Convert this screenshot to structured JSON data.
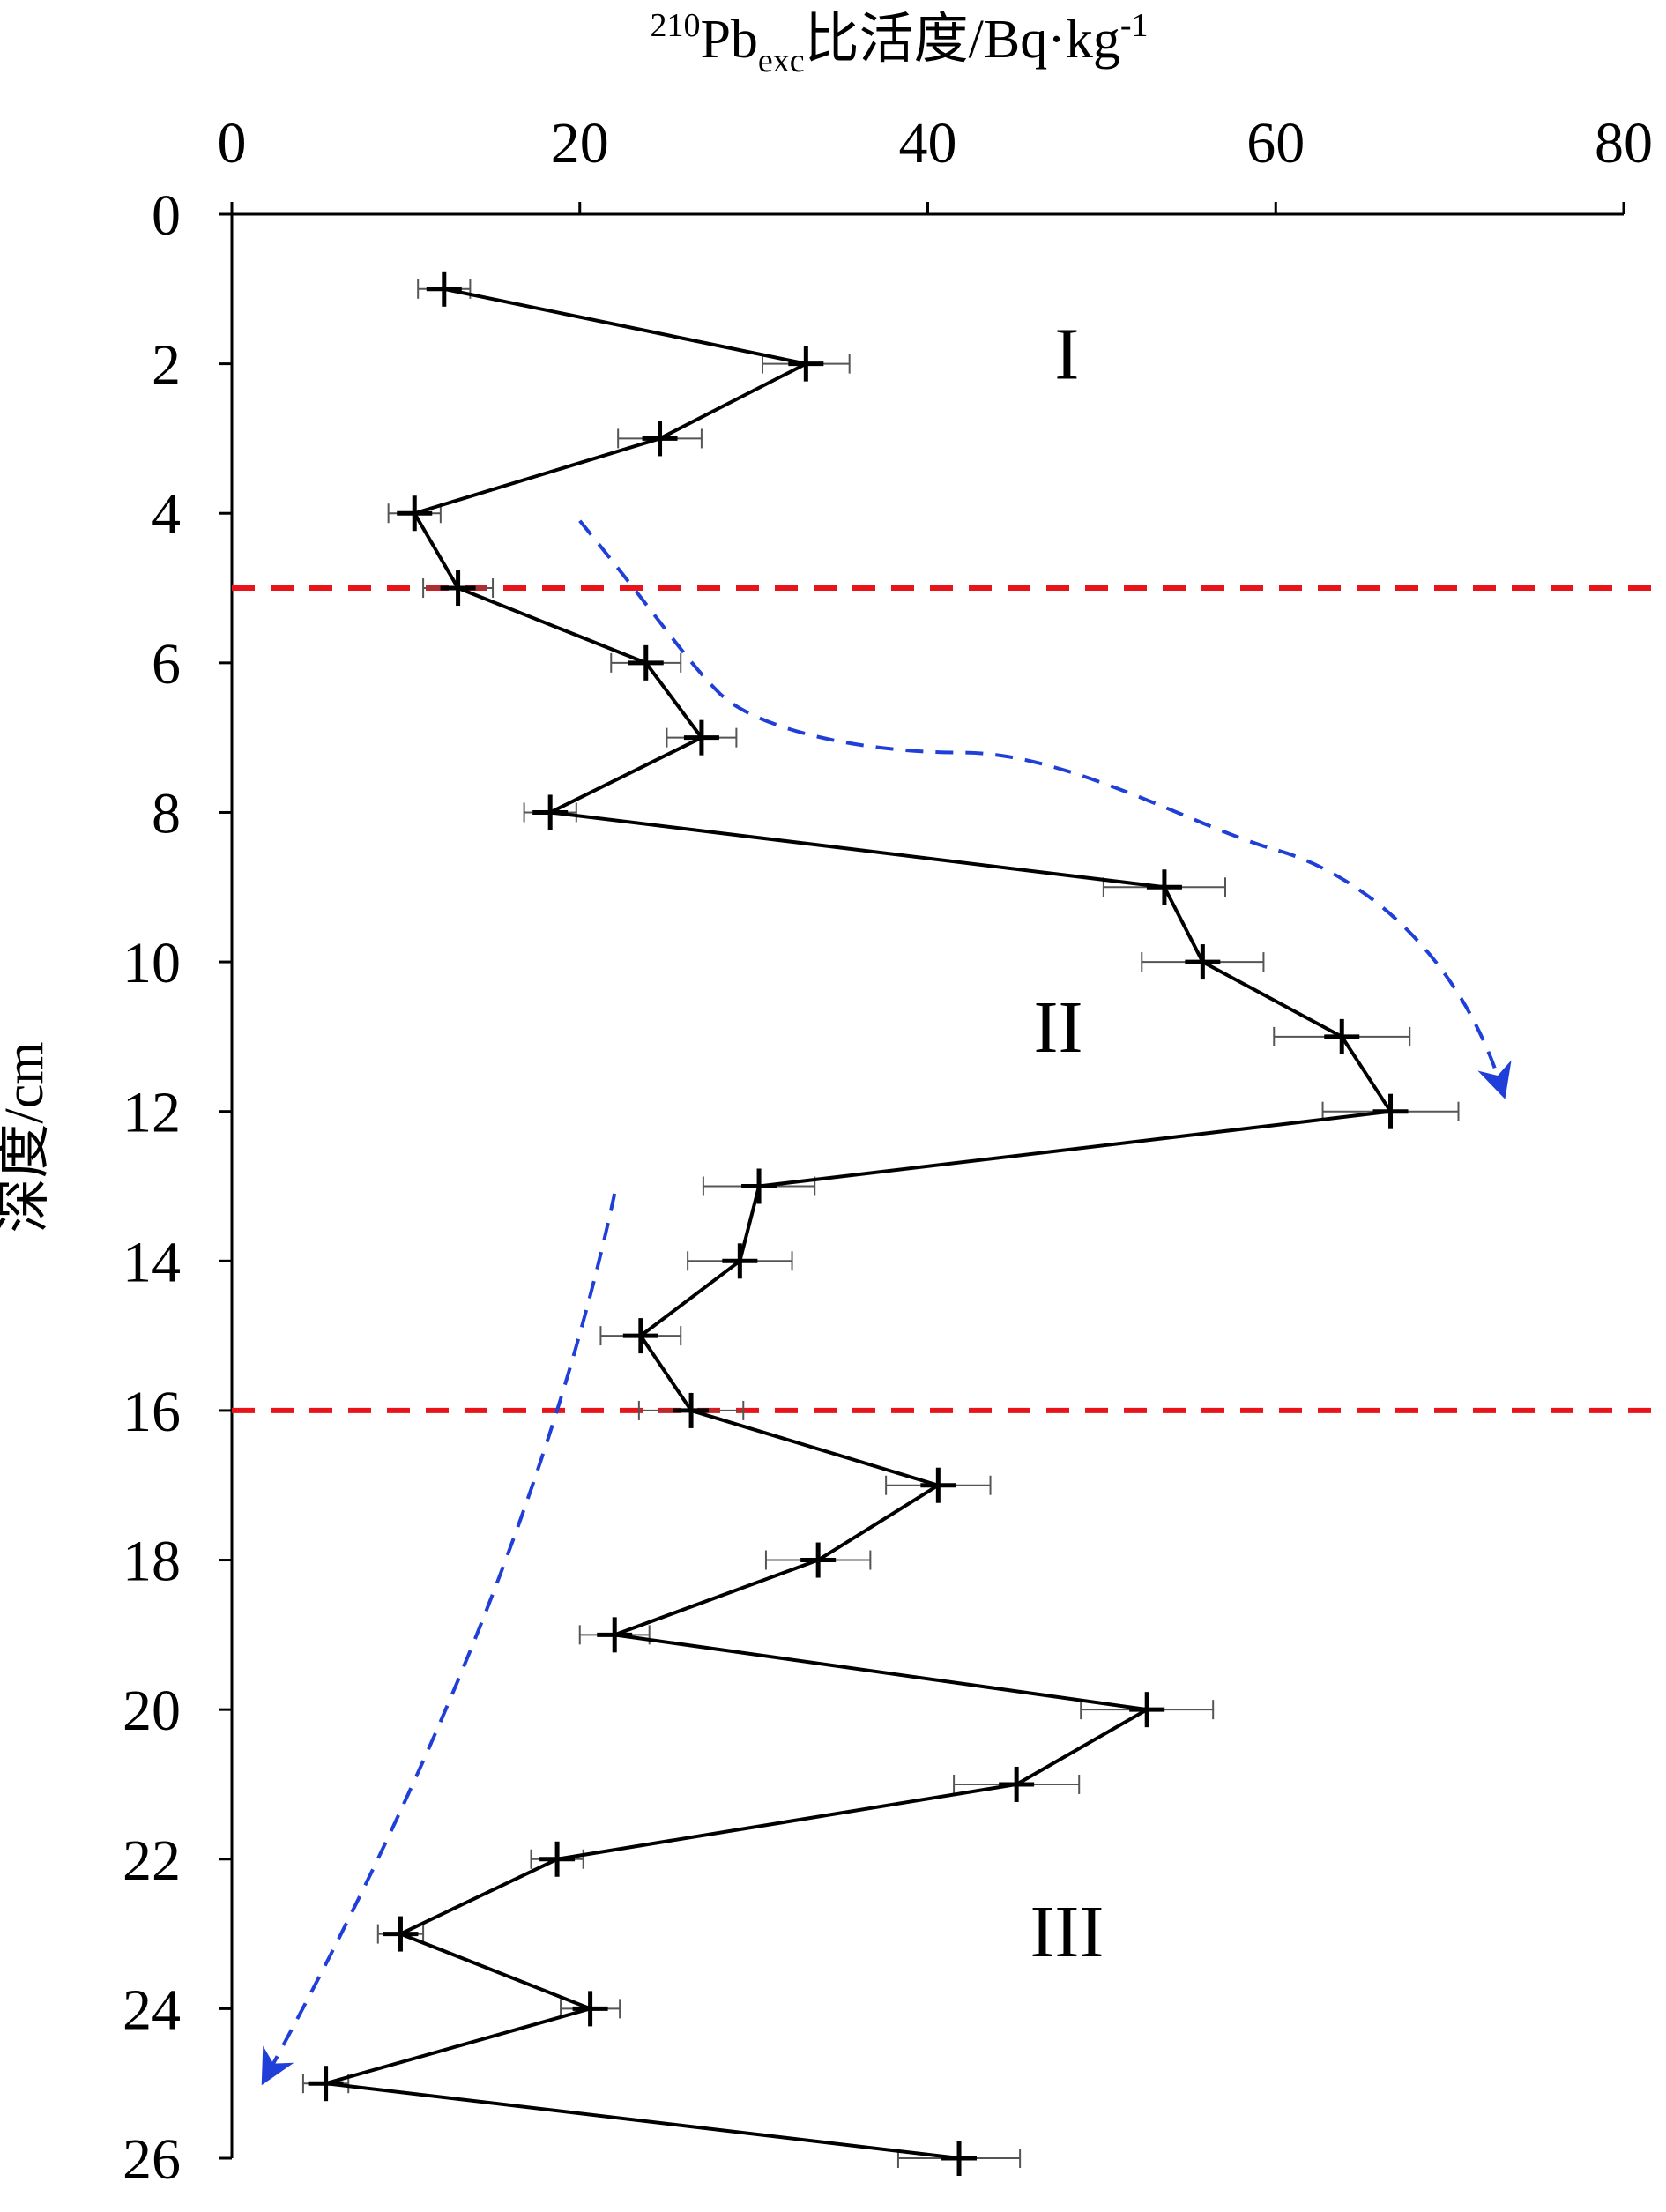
{
  "chart_data": {
    "type": "line",
    "xlabel": {
      "prefix_sup": "210",
      "main": "Pb",
      "sub": "exc",
      "suffix": "比活度/Bq·kg",
      "suffix_sup": "-1"
    },
    "ylabel": "深度/cm",
    "xlim": [
      0,
      80
    ],
    "ylim": [
      0,
      26
    ],
    "y_inverted": true,
    "x_axis_position": "top",
    "x_ticks": [
      0,
      20,
      40,
      60,
      80
    ],
    "y_ticks": [
      0,
      2,
      4,
      6,
      8,
      10,
      12,
      14,
      16,
      18,
      20,
      22,
      24,
      26
    ],
    "grid": false,
    "legend": "none",
    "colors": {
      "series": "#000000",
      "error_bar": "#555555",
      "boundary": "#e8141a",
      "trend": "#1f3fd8"
    },
    "series": [
      {
        "x": [
          12.2,
          33,
          24.6,
          10.5,
          13,
          23.8,
          27,
          18.3,
          53.6,
          55.8,
          63.8,
          66.6,
          30.3,
          29.2,
          23.5,
          26.4,
          40.6,
          33.7,
          22,
          52.6,
          45.1,
          18.7,
          9.7,
          20.6,
          5.4,
          41.8
        ],
        "y": [
          1,
          2,
          3,
          4,
          5,
          6,
          7,
          8,
          9,
          10,
          11,
          12,
          13,
          14,
          15,
          16,
          17,
          18,
          19,
          20,
          21,
          22,
          23,
          24,
          25,
          26
        ],
        "x_err": [
          1.5,
          2.5,
          2.4,
          1.5,
          2.0,
          2.0,
          2.0,
          1.5,
          3.5,
          3.5,
          3.9,
          3.9,
          3.2,
          3.0,
          2.3,
          3.0,
          3.0,
          3.0,
          2.0,
          3.8,
          3.6,
          1.5,
          1.3,
          1.7,
          1.3,
          3.5
        ]
      }
    ],
    "boundaries": [
      5,
      16
    ],
    "trend_arrows": [
      {
        "points": [
          [
            20,
            4.1
          ],
          [
            28,
            6.4
          ],
          [
            42,
            7.2
          ],
          [
            60,
            8.5
          ],
          [
            73,
            11.7
          ]
        ]
      },
      {
        "points": [
          [
            22,
            13.1
          ],
          [
            17,
            18.5
          ],
          [
            2,
            24.9
          ]
        ]
      }
    ],
    "annotations": [
      {
        "text": "I",
        "x": 48,
        "y": 2.2
      },
      {
        "text": "II",
        "x": 47.5,
        "y": 11.2
      },
      {
        "text": "III",
        "x": 48,
        "y": 23.3
      }
    ]
  }
}
